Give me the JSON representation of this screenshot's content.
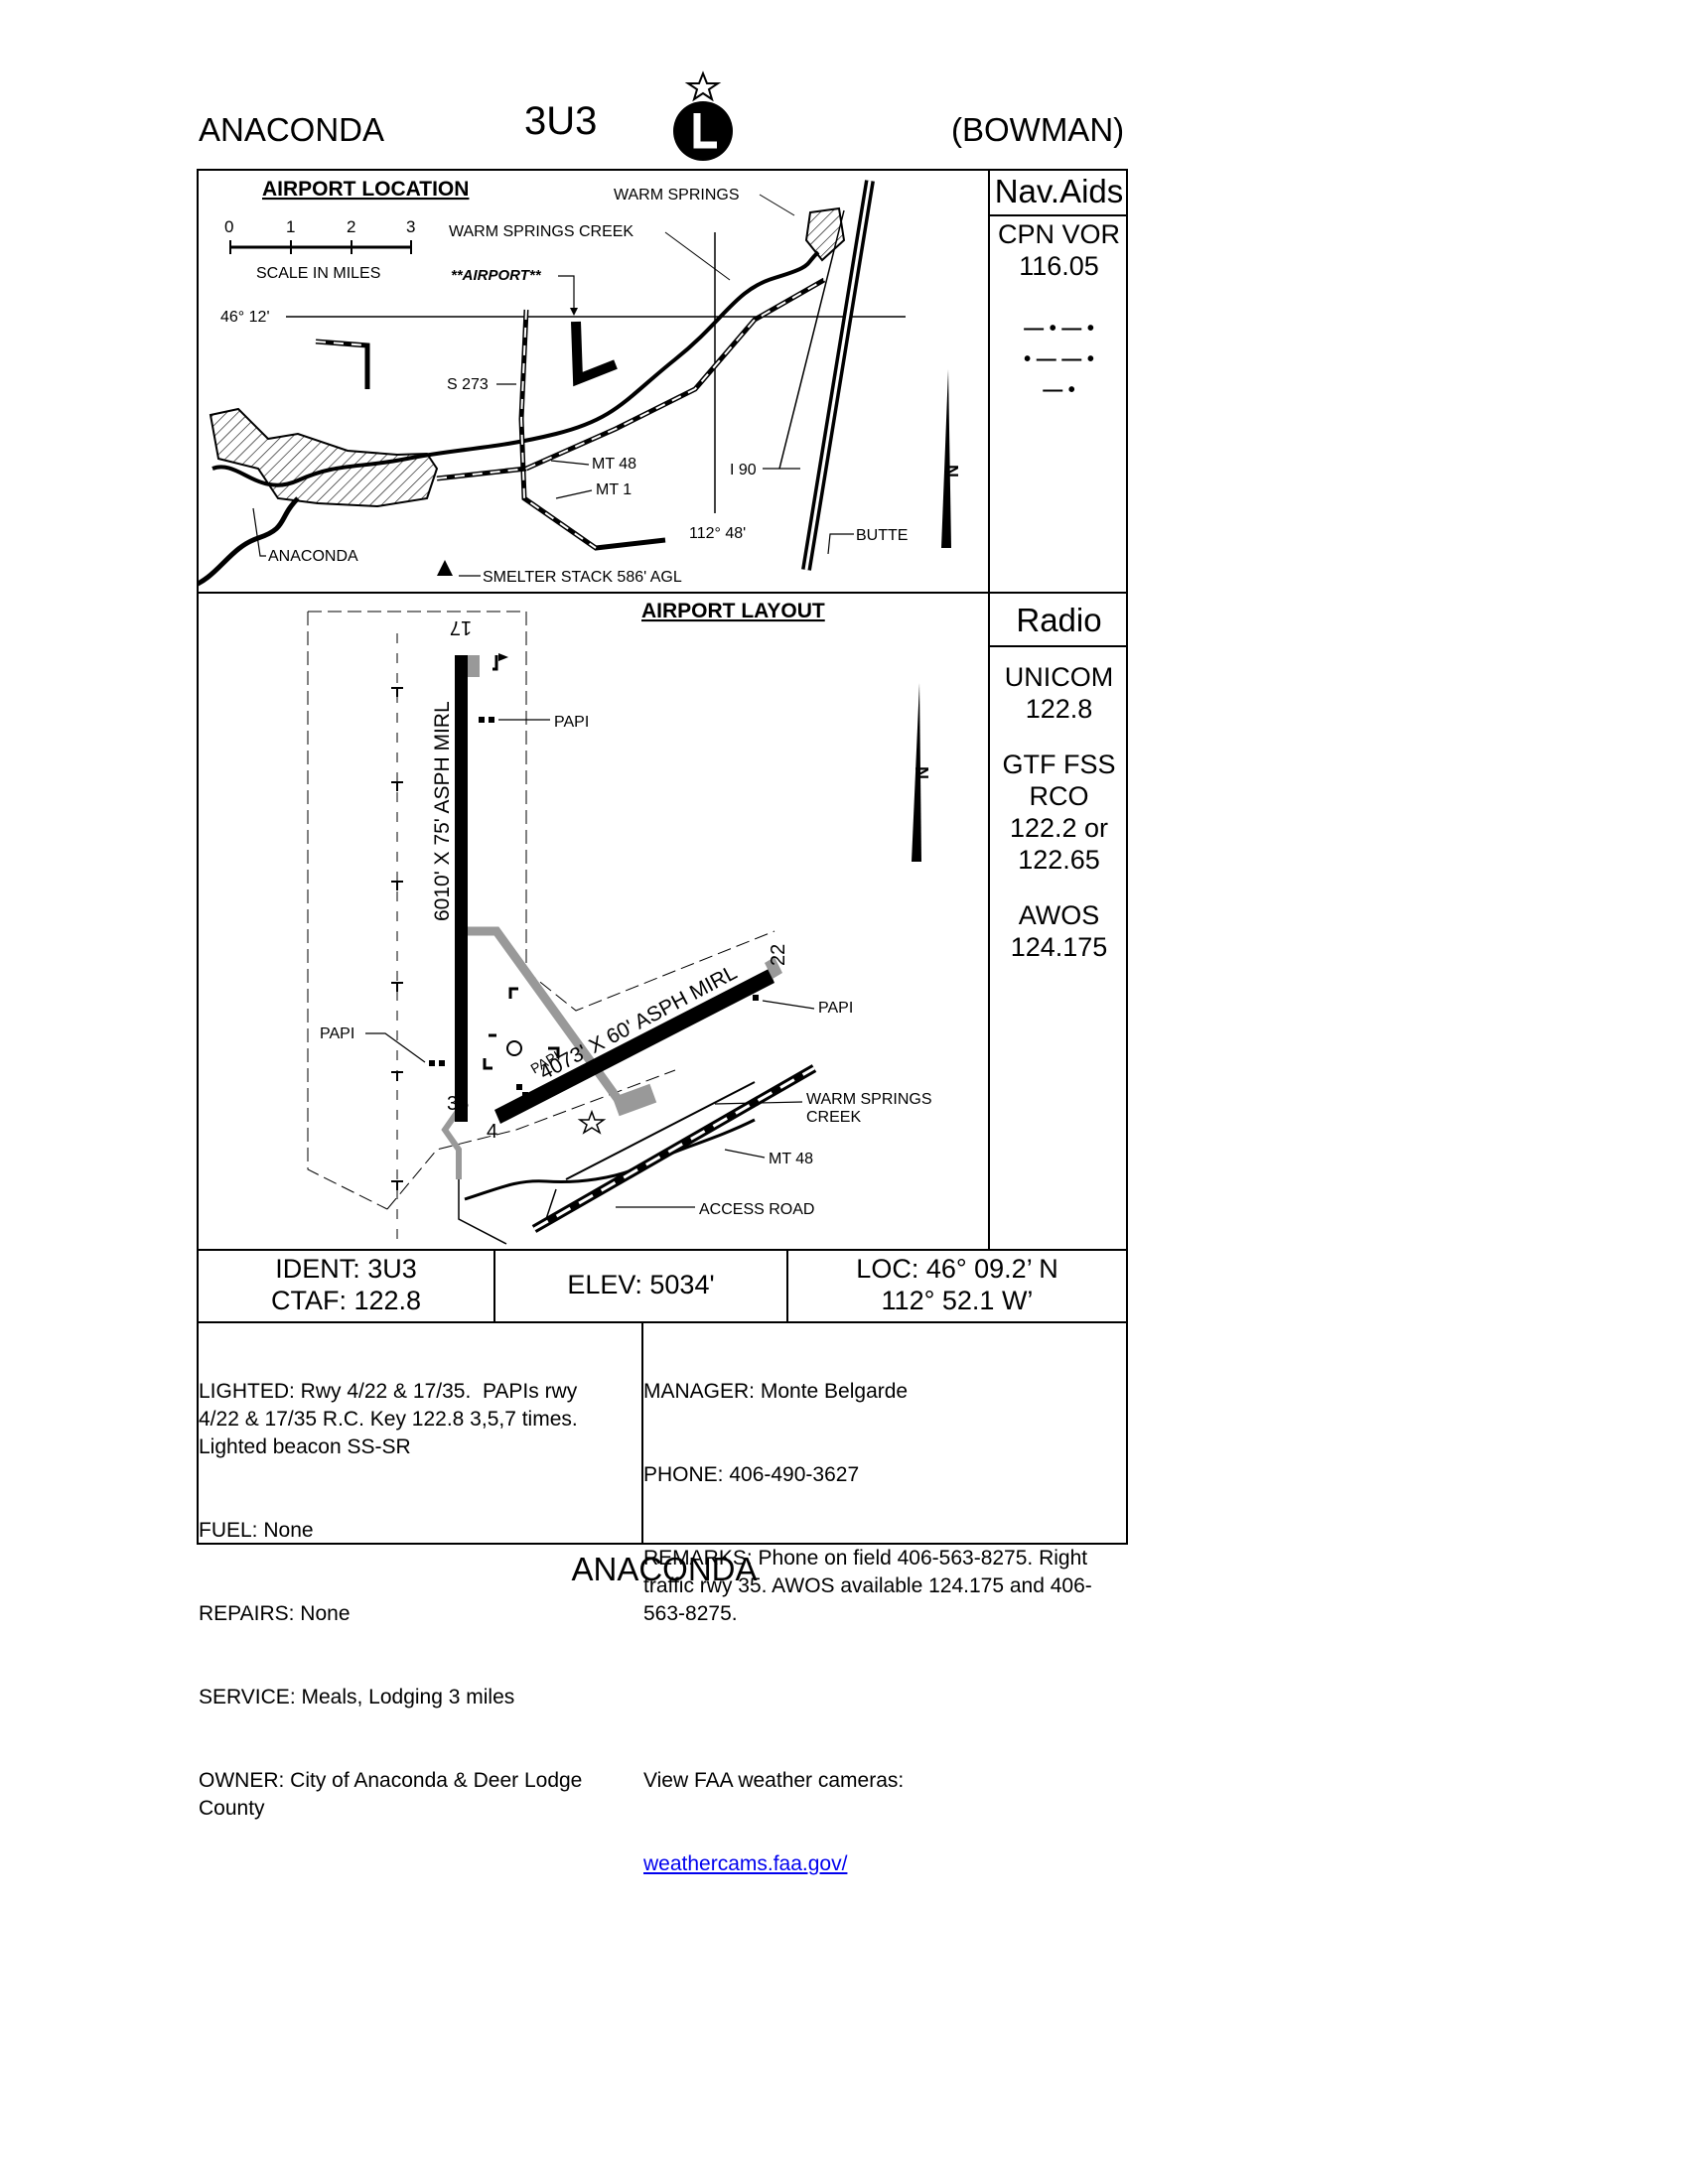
{
  "header": {
    "city": "ANACONDA",
    "ident": "3U3",
    "name": "(BOWMAN)"
  },
  "location_map": {
    "title": "AIRPORT LOCATION",
    "scale_ticks": [
      "0",
      "1",
      "2",
      "3"
    ],
    "scale_label": "SCALE IN MILES",
    "labels": {
      "warm_springs": "WARM SPRINGS",
      "warm_springs_creek": "WARM SPRINGS CREEK",
      "airport": "**AIRPORT**",
      "lat": "46° 12'",
      "s273": "S 273",
      "mt48": "MT 48",
      "mt1": "MT 1",
      "i90": "I 90",
      "lon": "112° 48'",
      "butte": "BUTTE",
      "anaconda": "ANACONDA",
      "smelter": "SMELTER STACK 586' AGL"
    }
  },
  "navaids": {
    "title": "Nav.Aids",
    "name": "CPN VOR",
    "freq": "116.05",
    "morse_lines": [
      "— • — •",
      "• — — •",
      "— •"
    ]
  },
  "layout_map": {
    "title": "AIRPORT LAYOUT",
    "labels": {
      "rwy17": "17",
      "rwy35": "35",
      "rwy4": "4",
      "rwy22": "22",
      "rwy17_35_desc": "6010' X 75' ASPH MIRL",
      "rwy4_22_desc": "4073' X 60'  ASPH MIRL",
      "papi_top": "PAPI",
      "papi_left": "PAPI",
      "papi_right": "PAPI",
      "papi_small": "PAPI",
      "creek": "WARM SPRINGS",
      "creek2": "CREEK",
      "mt48": "MT 48",
      "access": "ACCESS ROAD"
    }
  },
  "radio": {
    "title": "Radio",
    "unicom_label": "UNICOM",
    "unicom_freq": "122.8",
    "fss_label": "GTF FSS",
    "fss_sub": "RCO",
    "fss_freq1": "122.2 or",
    "fss_freq2": "122.65",
    "awos_label": "AWOS",
    "awos_freq": "124.175"
  },
  "summary": {
    "ident": "IDENT: 3U3",
    "ctaf": "CTAF: 122.8",
    "elev": "ELEV: 5034'",
    "loc_lat": "LOC: 46° 09.2’ N",
    "loc_lon": "112° 52.1 W’"
  },
  "details_left": {
    "lighted": "LIGHTED: Rwy 4/22 & 17/35.  PAPIs rwy\n4/22 & 17/35 R.C. Key 122.8 3,5,7 times.\nLighted beacon SS-SR",
    "fuel": "FUEL: None",
    "repairs": "REPAIRS: None",
    "service": "SERVICE: Meals, Lodging 3 miles",
    "owner": "OWNER: City of Anaconda & Deer Lodge\nCounty"
  },
  "details_right": {
    "manager": "MANAGER: Monte Belgarde",
    "phone": "PHONE: 406-490-3627",
    "remarks": "REMARKS: Phone on field 406-563-8275. Right\ntraffic rwy 35. AWOS available 124.175 and 406-\n563-8275.",
    "cams_label": "View FAA weather cameras:",
    "cams_link": "weathercams.faa.gov/"
  },
  "footer": {
    "city": "ANACONDA"
  }
}
